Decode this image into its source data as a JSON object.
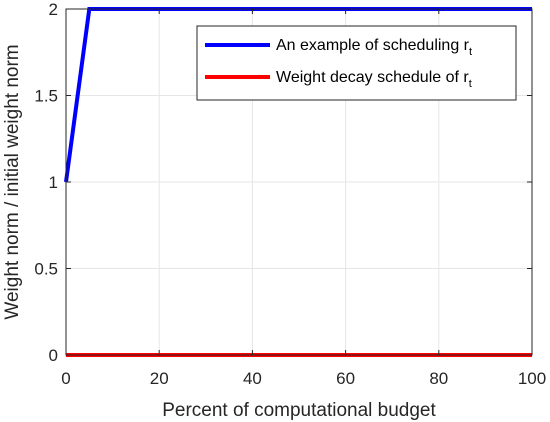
{
  "chart_data": {
    "type": "line",
    "title": "",
    "xlabel": "Percent of computational budget",
    "ylabel": "Weight norm / initial weight norm",
    "xlim": [
      0,
      100
    ],
    "ylim": [
      0,
      2
    ],
    "xticks": [
      0,
      20,
      40,
      60,
      80,
      100
    ],
    "yticks": [
      0,
      0.5,
      1,
      1.5,
      2
    ],
    "xtick_labels": [
      "0",
      "20",
      "40",
      "60",
      "80",
      "100"
    ],
    "ytick_labels": [
      "0",
      "0.5",
      "1",
      "1.5",
      "2"
    ],
    "grid": true,
    "legend_position": "top-right",
    "series": [
      {
        "name": "An example of scheduling r",
        "name_subscript": "t",
        "color": "#0000ff",
        "x": [
          0,
          5,
          100
        ],
        "y": [
          1,
          2,
          2
        ]
      },
      {
        "name": "Weight decay schedule of r",
        "name_subscript": "t",
        "color": "#ff0000",
        "x": [
          0,
          100
        ],
        "y": [
          0,
          0
        ]
      }
    ]
  }
}
